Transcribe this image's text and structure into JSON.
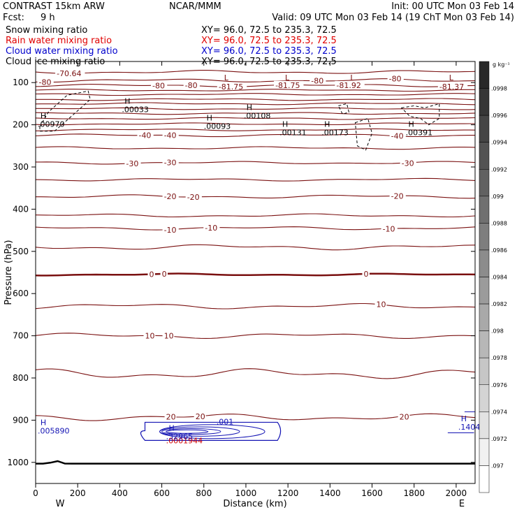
{
  "header": {
    "left_title": "CONTRAST 15km ARW",
    "center_title": "NCAR/MMM",
    "init": "Init: 00 UTC Mon 03 Feb 14",
    "fcst_label": "Fcst:",
    "fcst_value": "9 h",
    "valid": "Valid: 09 UTC Mon 03 Feb 14 (19 ChT Mon 03 Feb 14)",
    "fields": [
      {
        "name": "Snow mixing ratio",
        "xy": "XY=  96.0, 72.5 to 235.3, 72.5",
        "color": "#000000"
      },
      {
        "name": "Rain water mixing ratio",
        "xy": "XY=  96.0, 72.5 to 235.3, 72.5",
        "color": "#e00000"
      },
      {
        "name": "Cloud water mixing ratio",
        "xy": "XY=  96.0, 72.5 to 235.3, 72.5",
        "color": "#0000cc"
      },
      {
        "name": "Cloud ice mixing ratio",
        "xy": "XY=  96.0, 72.5 to 235.3, 72.5",
        "color": "#000000"
      }
    ]
  },
  "colors": {
    "temp": "#7a1010",
    "cloud_water": "#1414b4",
    "rain": "#d00000",
    "ink": "#000000"
  },
  "chart_data": {
    "type": "cross-section contour",
    "xlabel": "Distance (km)",
    "ylabel": "Pressure (hPa)",
    "xlim": [
      0,
      2090
    ],
    "ylim": [
      1050,
      50
    ],
    "x_ticks": [
      0,
      200,
      400,
      600,
      800,
      1000,
      1200,
      1400,
      1600,
      1800,
      2000
    ],
    "y_ticks": [
      100,
      200,
      300,
      400,
      500,
      600,
      700,
      800,
      900,
      1000
    ],
    "west_label": "W",
    "east_label": "E",
    "temperature_contours": [
      {
        "p": 75,
        "amp": 5,
        "labels": [
          {
            "x": 100,
            "t": "-70.64"
          }
        ]
      },
      {
        "p": 95,
        "amp": 5,
        "labels": [
          {
            "x": 15,
            "t": "-80"
          },
          {
            "x": 1310,
            "t": "-80"
          },
          {
            "x": 1680,
            "t": "-80"
          }
        ]
      },
      {
        "p": 107,
        "amp": 4,
        "labels": [
          {
            "x": 555,
            "t": "-80"
          },
          {
            "x": 710,
            "t": "-80"
          },
          {
            "x": 870,
            "t": "-81.75"
          },
          {
            "x": 1140,
            "t": "-81.75"
          },
          {
            "x": 1430,
            "t": "-81.92"
          },
          {
            "x": 1920,
            "t": "-81.37"
          }
        ]
      },
      {
        "p": 118,
        "amp": 3,
        "labels": []
      },
      {
        "p": 128,
        "amp": 3,
        "labels": []
      },
      {
        "p": 140,
        "amp": 3,
        "labels": []
      },
      {
        "p": 150,
        "amp": 3,
        "labels": []
      },
      {
        "p": 162,
        "amp": 3,
        "labels": []
      },
      {
        "p": 173,
        "amp": 3,
        "labels": []
      },
      {
        "p": 185,
        "amp": 3,
        "labels": []
      },
      {
        "p": 198,
        "amp": 3,
        "labels": []
      },
      {
        "p": 212,
        "amp": 3,
        "labels": []
      },
      {
        "p": 225,
        "amp": 4,
        "labels": [
          {
            "x": 490,
            "t": "-40"
          },
          {
            "x": 610,
            "t": "-40"
          },
          {
            "x": 1690,
            "t": "-40"
          }
        ]
      },
      {
        "p": 255,
        "amp": 4,
        "labels": []
      },
      {
        "p": 290,
        "amp": 4,
        "labels": [
          {
            "x": 430,
            "t": "-30"
          },
          {
            "x": 610,
            "t": "-30"
          },
          {
            "x": 1740,
            "t": "-30"
          }
        ]
      },
      {
        "p": 330,
        "amp": 4,
        "labels": []
      },
      {
        "p": 370,
        "amp": 5,
        "labels": [
          {
            "x": 610,
            "t": "-20"
          },
          {
            "x": 720,
            "t": "-20"
          },
          {
            "x": 1690,
            "t": "-20"
          }
        ]
      },
      {
        "p": 415,
        "amp": 5,
        "labels": []
      },
      {
        "p": 445,
        "amp": 5,
        "labels": [
          {
            "x": 610,
            "t": "-10"
          },
          {
            "x": 805,
            "t": "-10"
          },
          {
            "x": 1650,
            "t": "-10"
          }
        ]
      },
      {
        "p": 490,
        "amp": 8,
        "labels": []
      },
      {
        "p": 555,
        "amp": 3,
        "bold": true,
        "labels": [
          {
            "x": 540,
            "t": "0"
          },
          {
            "x": 600,
            "t": "0"
          },
          {
            "x": 1560,
            "t": "0"
          }
        ]
      },
      {
        "p": 630,
        "amp": 8,
        "labels": [
          {
            "x": 1620,
            "t": "10"
          }
        ]
      },
      {
        "p": 700,
        "amp": 8,
        "labels": [
          {
            "x": 520,
            "t": "10"
          },
          {
            "x": 610,
            "t": "10"
          }
        ]
      },
      {
        "p": 790,
        "amp": 15,
        "labels": []
      },
      {
        "p": 893,
        "amp": 10,
        "labels": [
          {
            "x": 620,
            "t": "20"
          },
          {
            "x": 760,
            "t": "20"
          },
          {
            "x": 1730,
            "t": "20"
          }
        ]
      }
    ],
    "surface_pressure_hpa": 1003,
    "extrema": [
      {
        "x": 10,
        "p": 185,
        "sym": "H",
        "val": ".00970",
        "series": "ice"
      },
      {
        "x": 410,
        "p": 150,
        "sym": "H",
        "val": ".00033",
        "series": "ice"
      },
      {
        "x": 800,
        "p": 190,
        "sym": "H",
        "val": ".00093",
        "series": "ice"
      },
      {
        "x": 990,
        "p": 165,
        "sym": "H",
        "val": ".00108",
        "series": "ice"
      },
      {
        "x": 1160,
        "p": 205,
        "sym": "H",
        "val": ".00131",
        "series": "ice"
      },
      {
        "x": 1360,
        "p": 205,
        "sym": "H",
        "val": ".00173",
        "series": "ice"
      },
      {
        "x": 1760,
        "p": 205,
        "sym": "H",
        "val": ".00391",
        "series": "ice"
      },
      {
        "x": 880,
        "p": 95,
        "sym": "L",
        "val": "",
        "series": "temp"
      },
      {
        "x": 1170,
        "p": 95,
        "sym": "L",
        "val": "",
        "series": "temp"
      },
      {
        "x": 1480,
        "p": 95,
        "sym": "L",
        "val": "",
        "series": "temp"
      },
      {
        "x": 1950,
        "p": 95,
        "sym": "L",
        "val": "",
        "series": "temp"
      },
      {
        "x": 10,
        "p": 912,
        "sym": "H",
        "val": ".005890",
        "series": "cloud"
      },
      {
        "x": 2010,
        "p": 903,
        "sym": "H",
        "val": ".1404",
        "series": "cloud"
      },
      {
        "x": 620,
        "p": 925,
        "sym": "H",
        "val": ".32965",
        "series": "cloud"
      }
    ],
    "cloud_water_contour_label": ".001",
    "rain_water_max": ".0001944",
    "colorbar": {
      "unit_label": "g kg⁻¹",
      "labels": [
        ".0998",
        ".0996",
        ".0994",
        ".0992",
        ".099",
        ".0988",
        ".0986",
        ".0984",
        ".0982",
        ".098",
        ".0978",
        ".0976",
        ".0974",
        ".0972",
        ".097"
      ]
    }
  }
}
